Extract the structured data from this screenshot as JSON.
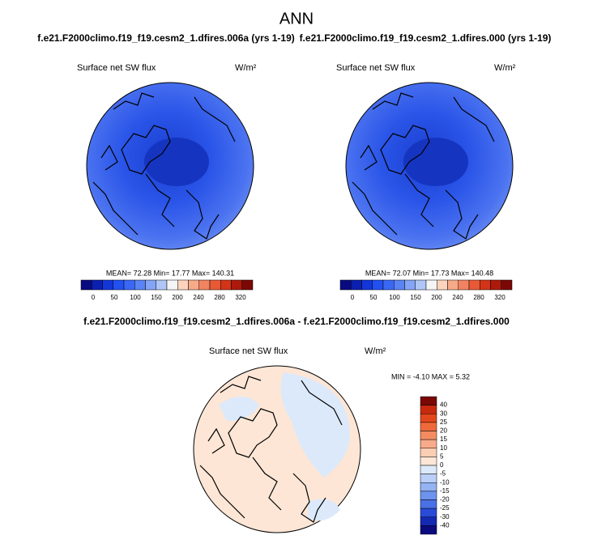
{
  "title": "ANN",
  "panels": [
    {
      "title": "f.e21.F2000climo.f19_f19.cesm2_1.dfires.006a (yrs 1-19)",
      "variable": "Surface net SW flux",
      "units": "W/m²",
      "stats": "MEAN= 72.28  Min= 17.77  Max= 140.31",
      "colorbar_labels": [
        0,
        50,
        100,
        150,
        200,
        240,
        280,
        320
      ]
    },
    {
      "title": "f.e21.F2000climo.f19_f19.cesm2_1.dfires.000 (yrs 1-19)",
      "variable": "Surface net SW flux",
      "units": "W/m²",
      "stats": "MEAN= 72.07  Min= 17.73  Max= 140.48",
      "colorbar_labels": [
        0,
        50,
        100,
        150,
        200,
        240,
        280,
        320
      ]
    }
  ],
  "difference": {
    "title": "f.e21.F2000climo.f19_f19.cesm2_1.dfires.006a - f.e21.F2000climo.f19_f19.cesm2_1.dfires.000",
    "variable": "Surface net SW flux",
    "units": "W/m²",
    "stats": "MIN = -4.10 MAX =  5.32",
    "colorbar_labels": [
      40,
      30,
      25,
      20,
      15,
      10,
      5,
      0,
      -5,
      -10,
      -15,
      -20,
      -25,
      -30,
      -40
    ]
  },
  "colorbar_colors": [
    "#0a0a80",
    "#0b1fb0",
    "#1436d8",
    "#2350f0",
    "#3a68f5",
    "#5a84f5",
    "#84a5f5",
    "#b0c6f7",
    "#f5f5f5",
    "#fcd3bd",
    "#f7aa88",
    "#f28360",
    "#e85a36",
    "#d33418",
    "#ad1a0c",
    "#7a0806"
  ],
  "diff_colors": [
    "#7a0806",
    "#c82a10",
    "#e3471c",
    "#ef6a3a",
    "#f48c62",
    "#f8ab8a",
    "#fbcdb3",
    "#fde6d6",
    "#dbe9fb",
    "#b9cff7",
    "#93b3f3",
    "#6d93ee",
    "#4a70e6",
    "#2a4bd8",
    "#1428b2",
    "#0b0b80"
  ]
}
